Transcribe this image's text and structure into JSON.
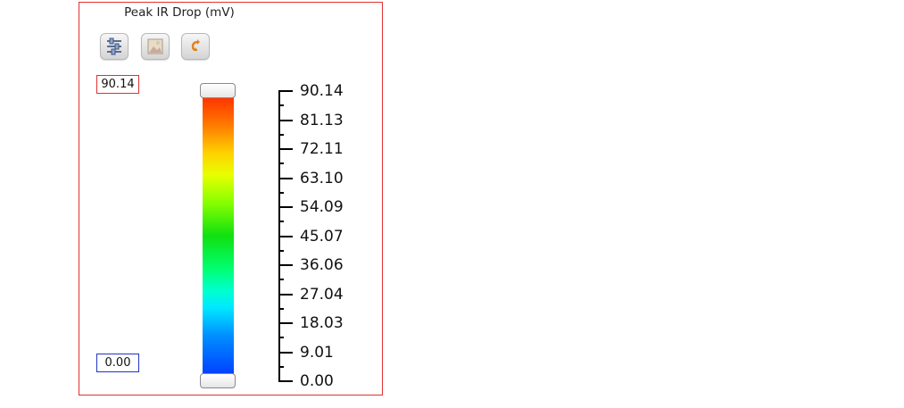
{
  "legend": {
    "title": "Peak IR Drop (mV)",
    "max_value": "90.14",
    "min_value": "0.00",
    "tick_labels": [
      "90.14",
      "81.13",
      "72.11",
      "63.10",
      "54.09",
      "45.07",
      "36.06",
      "27.04",
      "18.03",
      "9.01",
      "0.00"
    ],
    "colormap": [
      "#ff3300",
      "#ff7a00",
      "#ffd000",
      "#e8ff00",
      "#88ff00",
      "#10e010",
      "#00ff70",
      "#00ffd0",
      "#00e8ff",
      "#0090ff",
      "#0040ff"
    ]
  },
  "toolbar": {
    "buttons": [
      {
        "icon": "settings-sliders-icon"
      },
      {
        "icon": "image-icon"
      },
      {
        "icon": "reset-arrow-icon"
      }
    ]
  },
  "colors": {
    "panel_border": "#e03030",
    "max_border": "#e03030",
    "min_border": "#2035c8"
  }
}
